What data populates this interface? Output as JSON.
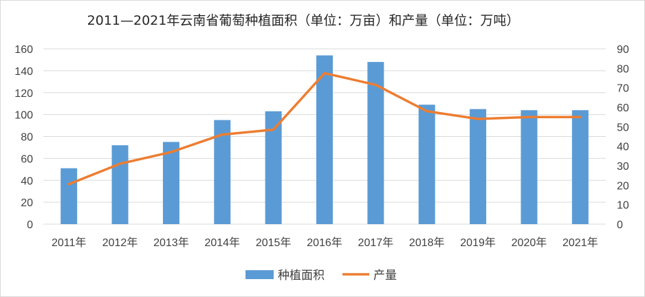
{
  "chart_data": {
    "type": "bar",
    "title": "2011—2021年云南省葡萄种植面积（单位：万亩）和产量（单位：万吨）",
    "categories": [
      "2011年",
      "2012年",
      "2013年",
      "2014年",
      "2015年",
      "2016年",
      "2017年",
      "2018年",
      "2019年",
      "2020年",
      "2021年"
    ],
    "series": [
      {
        "name": "种植面积",
        "type": "bar",
        "axis": "left",
        "color": "#5b9bd5",
        "values": [
          51,
          72,
          75,
          95,
          103,
          154,
          148,
          109,
          105,
          104,
          104
        ]
      },
      {
        "name": "产量",
        "type": "line",
        "axis": "right",
        "color": "#ed7d31",
        "values": [
          20.5,
          31,
          37,
          46,
          48.5,
          77.5,
          71.5,
          58,
          54,
          55,
          55
        ]
      }
    ],
    "y_left": {
      "min": 0,
      "max": 160,
      "step": 20,
      "ticks": [
        "0",
        "20",
        "40",
        "60",
        "80",
        "100",
        "120",
        "140",
        "160"
      ]
    },
    "y_right": {
      "min": 0,
      "max": 90,
      "step": 10,
      "ticks": [
        "0",
        "10",
        "20",
        "30",
        "40",
        "50",
        "60",
        "70",
        "80",
        "90"
      ]
    },
    "grid": true,
    "legend": "bottom"
  }
}
